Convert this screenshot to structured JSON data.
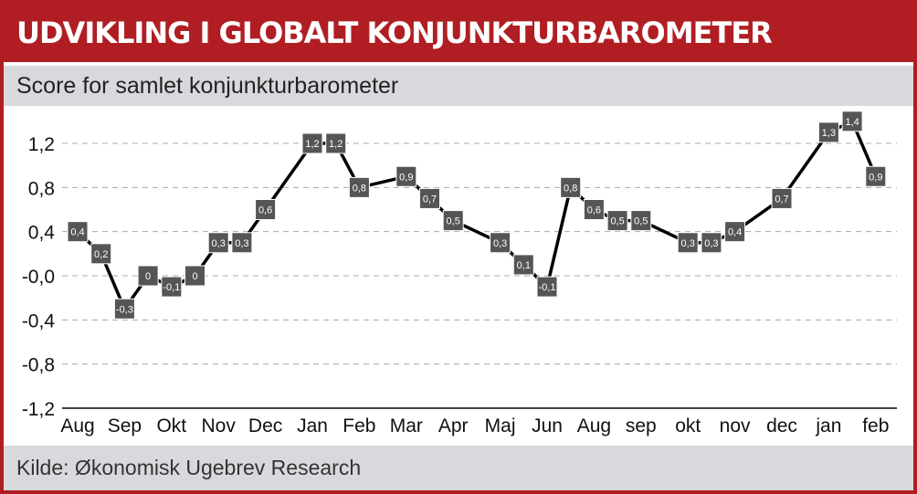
{
  "title": "UDVIKLING I GLOBALT KONJUNKTURBAROMETER",
  "subtitle": "Score for samlet konjunkturbarometer",
  "source": "Kilde: Økonomisk Ugebrev Research",
  "colors": {
    "accent": "#b01e23",
    "band": "#d8d9dd",
    "line": "#000000",
    "marker": "#555555"
  },
  "chart_data": {
    "type": "line",
    "title": "Score for samlet konjunkturbarometer",
    "ylim": [
      -1.2,
      1.4
    ],
    "yticks": [
      1.2,
      0.8,
      0.4,
      0.0,
      -0.4,
      -0.8,
      -1.2
    ],
    "ytick_labels": [
      "1,2",
      "0,8",
      "0,4",
      "-0,0",
      "-0,4",
      "-0,8",
      "-1,2"
    ],
    "grid": true,
    "categories": [
      "Aug",
      "Sep",
      "Okt",
      "Nov",
      "Dec",
      "Jan",
      "Feb",
      "Mar",
      "Apr",
      "Maj",
      "Jun",
      "Aug",
      "sep",
      "okt",
      "nov",
      "dec",
      "jan",
      "feb"
    ],
    "x": [
      0,
      1,
      2,
      3,
      4,
      5,
      6,
      7,
      8,
      9,
      10,
      11,
      12,
      13,
      14,
      15,
      16,
      17
    ],
    "series": [
      {
        "x": [
          0,
          0.5,
          1,
          1.5,
          2,
          2.5,
          3,
          3.5,
          4,
          5,
          5.5,
          6,
          7,
          7.5,
          8,
          9,
          9.5,
          10,
          10.5,
          11,
          11.5,
          12,
          13,
          13.5,
          14,
          15,
          16,
          16.5,
          17
        ],
        "values": [
          0.4,
          0.2,
          -0.3,
          0,
          -0.1,
          0,
          0.3,
          0.3,
          0.6,
          1.2,
          1.2,
          0.8,
          0.9,
          0.7,
          0.5,
          0.3,
          0.1,
          -0.1,
          0.8,
          0.6,
          0.5,
          0.5,
          0.3,
          0.3,
          0.4,
          0.7,
          1.3,
          1.4,
          0.9
        ],
        "labels": [
          "0,4",
          "0,2",
          "-0,3",
          "0",
          "-0,1",
          "0",
          "0,3",
          "0,3",
          "0,6",
          "1,2",
          "1,2",
          "0,8",
          "0,9",
          "0,7",
          "0,5",
          "0,3",
          "0,1",
          "-0,1",
          "0,8",
          "0,6",
          "0,5",
          "0,5",
          "0,3",
          "0,3",
          "0,4",
          "0,7",
          "1,3",
          "1,4",
          "0,9"
        ]
      }
    ]
  }
}
